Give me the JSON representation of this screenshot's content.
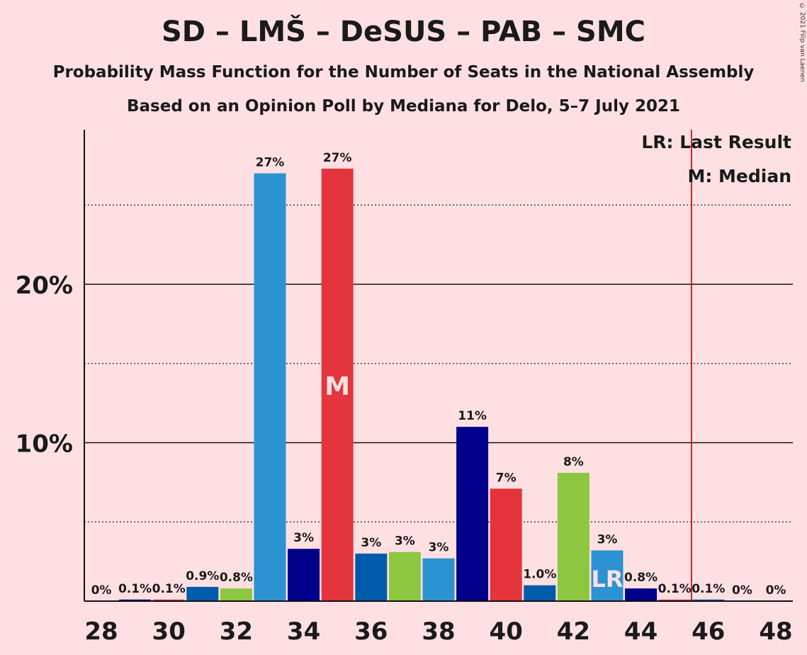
{
  "title": "SD – LMŠ – DeSUS – PAB – SMC",
  "subtitle": "Probability Mass Function for the Number of Seats in the National Assembly",
  "subtitle2": "Based on an Opinion Poll by Mediana for Delo, 5–7 July 2021",
  "copyright": "© 2021 Filip van Laenen",
  "legend": {
    "lr": "LR: Last Result",
    "m": "M: Median"
  },
  "markers": {
    "median_label": "M",
    "last_result_label": "LR"
  },
  "colors": {
    "background": "#FFE0E2",
    "median_bar": "#E3353B",
    "last_result_line": "#CC1111"
  },
  "chart_data": {
    "type": "bar",
    "title": "SD – LMŠ – DeSUS – PAB – SMC",
    "xlabel": "",
    "ylabel": "",
    "ylim": [
      0,
      29.5
    ],
    "yticks": [
      {
        "value": 10,
        "label": "10%"
      },
      {
        "value": 20,
        "label": "20%"
      }
    ],
    "dotted_gridlines": [
      5,
      15,
      25
    ],
    "solid_gridlines": [
      10,
      20
    ],
    "xticks": [
      28,
      30,
      32,
      34,
      36,
      38,
      40,
      42,
      44,
      46,
      48
    ],
    "median_seat": 35,
    "last_result_seat": 43,
    "majority_line_seat": 45.5,
    "bars": [
      {
        "seat": 28,
        "value": 0,
        "label": "0%",
        "color": "#1F2F9A"
      },
      {
        "seat": 29,
        "value": 0.1,
        "label": "0.1%",
        "color": "#00008B"
      },
      {
        "seat": 30,
        "value": 0.1,
        "label": "0.1%",
        "color": "#E3353B"
      },
      {
        "seat": 31,
        "value": 0.9,
        "label": "0.9%",
        "color": "#005BAA"
      },
      {
        "seat": 32,
        "value": 0.8,
        "label": "0.8%",
        "color": "#8DC63F"
      },
      {
        "seat": 33,
        "value": 27.0,
        "label": "27%",
        "color": "#2B93D1"
      },
      {
        "seat": 34,
        "value": 3.3,
        "label": "3%",
        "color": "#00008B"
      },
      {
        "seat": 35,
        "value": 27.3,
        "label": "27%",
        "color": "#E3353B"
      },
      {
        "seat": 36,
        "value": 3.0,
        "label": "3%",
        "color": "#005BAA"
      },
      {
        "seat": 37,
        "value": 3.1,
        "label": "3%",
        "color": "#8DC63F"
      },
      {
        "seat": 38,
        "value": 2.7,
        "label": "3%",
        "color": "#2B93D1"
      },
      {
        "seat": 39,
        "value": 11.0,
        "label": "11%",
        "color": "#00008B"
      },
      {
        "seat": 40,
        "value": 7.1,
        "label": "7%",
        "color": "#E3353B"
      },
      {
        "seat": 41,
        "value": 1.0,
        "label": "1.0%",
        "color": "#005BAA"
      },
      {
        "seat": 42,
        "value": 8.1,
        "label": "8%",
        "color": "#8DC63F"
      },
      {
        "seat": 43,
        "value": 3.2,
        "label": "3%",
        "color": "#2B93D1"
      },
      {
        "seat": 44,
        "value": 0.8,
        "label": "0.8%",
        "color": "#00008B"
      },
      {
        "seat": 45,
        "value": 0.1,
        "label": "0.1%",
        "color": "#E3353B"
      },
      {
        "seat": 46,
        "value": 0.1,
        "label": "0.1%",
        "color": "#005BAA"
      },
      {
        "seat": 47,
        "value": 0,
        "label": "0%",
        "color": "#8DC63F"
      },
      {
        "seat": 48,
        "value": 0,
        "label": "0%",
        "color": "#2B93D1"
      }
    ]
  }
}
